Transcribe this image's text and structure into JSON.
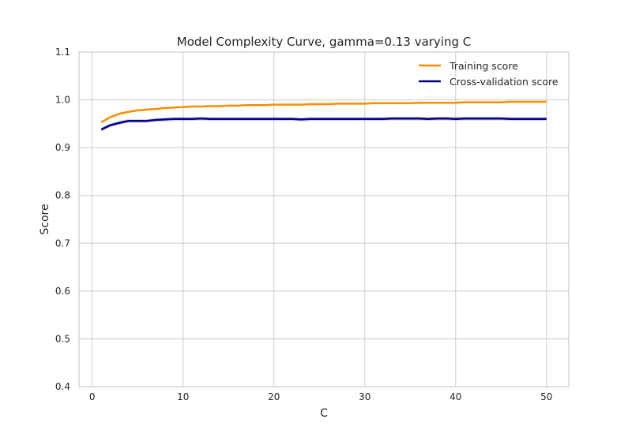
{
  "chart_data": {
    "type": "line",
    "title": "Model Complexity Curve, gamma=0.13 varying C",
    "xlabel": "C",
    "ylabel": "Score",
    "xlim": [
      -1.45,
      52.45
    ],
    "ylim": [
      0.4,
      1.1
    ],
    "xticks": [
      0,
      10,
      20,
      30,
      40,
      50
    ],
    "yticks": [
      0.4,
      0.5,
      0.6,
      0.7,
      0.8,
      0.9,
      1.0,
      1.1
    ],
    "xtick_labels": [
      "0",
      "10",
      "20",
      "30",
      "40",
      "50"
    ],
    "ytick_labels": [
      "0.4",
      "0.5",
      "0.6",
      "0.7",
      "0.8",
      "0.9",
      "1.0",
      "1.1"
    ],
    "grid": true,
    "legend_position": "top-right",
    "x": [
      1,
      2,
      3,
      4,
      5,
      6,
      7,
      8,
      9,
      10,
      11,
      12,
      13,
      14,
      15,
      16,
      17,
      18,
      19,
      20,
      21,
      22,
      23,
      24,
      25,
      26,
      27,
      28,
      29,
      30,
      31,
      32,
      33,
      34,
      35,
      36,
      37,
      38,
      39,
      40,
      41,
      42,
      43,
      44,
      45,
      46,
      47,
      48,
      49,
      50
    ],
    "series": [
      {
        "name": "Training score",
        "color": "#ff8c00",
        "values": [
          0.953,
          0.964,
          0.971,
          0.975,
          0.978,
          0.98,
          0.981,
          0.983,
          0.984,
          0.985,
          0.986,
          0.986,
          0.987,
          0.987,
          0.988,
          0.988,
          0.989,
          0.989,
          0.989,
          0.99,
          0.99,
          0.99,
          0.99,
          0.991,
          0.991,
          0.991,
          0.992,
          0.992,
          0.992,
          0.992,
          0.993,
          0.993,
          0.993,
          0.993,
          0.993,
          0.994,
          0.994,
          0.994,
          0.994,
          0.994,
          0.995,
          0.995,
          0.995,
          0.995,
          0.995,
          0.996,
          0.996,
          0.996,
          0.996,
          0.996
        ],
        "band": 0.0015
      },
      {
        "name": "Cross-validation score",
        "color": "#000080",
        "band_color": "#7b7bdb",
        "values": [
          0.938,
          0.947,
          0.952,
          0.956,
          0.956,
          0.956,
          0.958,
          0.959,
          0.96,
          0.96,
          0.96,
          0.961,
          0.96,
          0.96,
          0.96,
          0.96,
          0.96,
          0.96,
          0.96,
          0.96,
          0.96,
          0.96,
          0.959,
          0.96,
          0.96,
          0.96,
          0.96,
          0.96,
          0.96,
          0.96,
          0.96,
          0.96,
          0.961,
          0.961,
          0.961,
          0.961,
          0.96,
          0.961,
          0.961,
          0.96,
          0.961,
          0.961,
          0.961,
          0.961,
          0.961,
          0.96,
          0.96,
          0.96,
          0.96,
          0.96
        ],
        "band": 0.004
      }
    ]
  }
}
